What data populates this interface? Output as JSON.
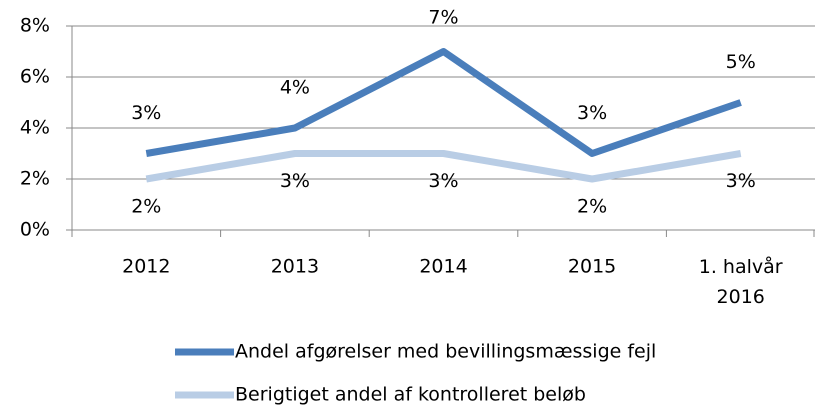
{
  "chart_data": {
    "type": "line",
    "categories": [
      "2012",
      "2013",
      "2014",
      "2015",
      "1. halvår 2016"
    ],
    "series": [
      {
        "name": "Andel afgørelser med bevillingsmæssige fejl",
        "color": "#4a7ebb",
        "values": [
          3,
          4,
          7,
          3,
          5
        ],
        "value_labels": [
          "3%",
          "4%",
          "7%",
          "3%",
          "5%"
        ]
      },
      {
        "name": "Berigtiget andel af kontrolleret beløb",
        "color": "#b9cde5",
        "values": [
          2,
          3,
          3,
          2,
          3
        ],
        "value_labels": [
          "2%",
          "3%",
          "3%",
          "2%",
          "3%"
        ]
      }
    ],
    "ylim": [
      0,
      8
    ],
    "yticks": [
      {
        "value": 0,
        "label": "0%"
      },
      {
        "value": 2,
        "label": "2%"
      },
      {
        "value": 4,
        "label": "4%"
      },
      {
        "value": 6,
        "label": "6%"
      },
      {
        "value": 8,
        "label": "8%"
      }
    ],
    "grid": true,
    "legend": "bottom"
  }
}
